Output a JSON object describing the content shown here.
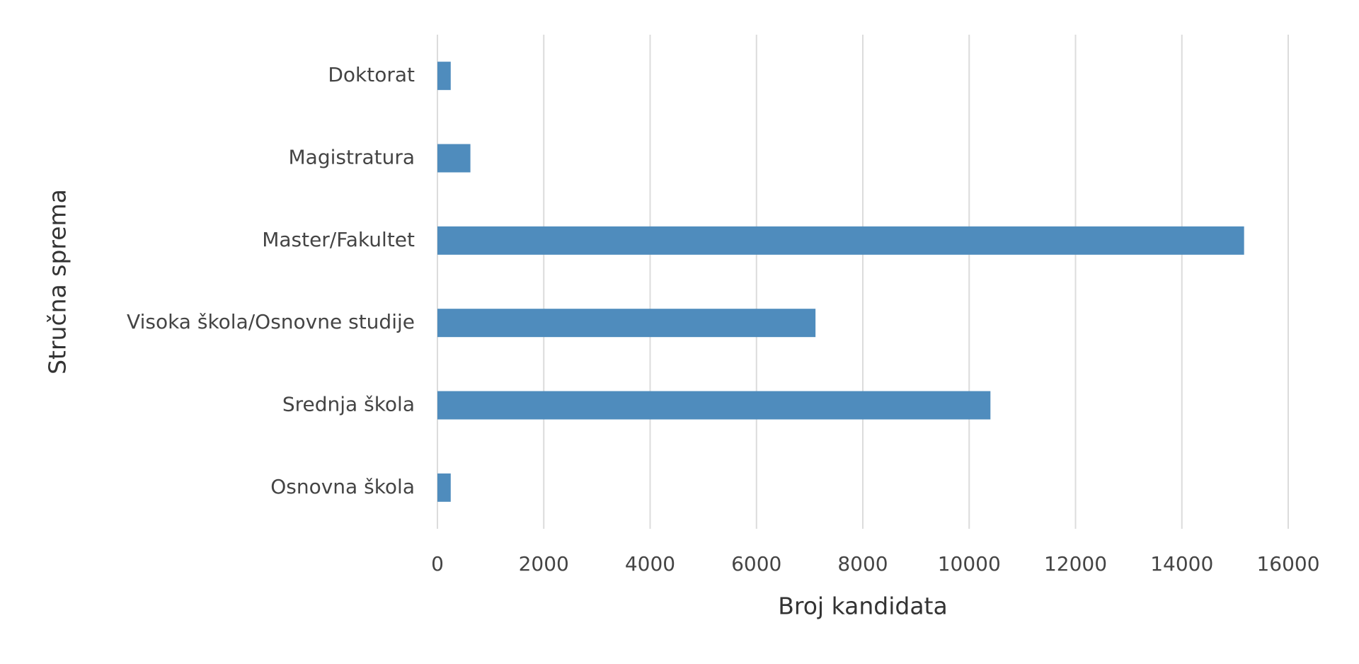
{
  "chart_data": {
    "type": "hbar",
    "xlabel": "Broj kandidata",
    "ylabel": "Stručna sprema",
    "categories": [
      "Doktorat",
      "Magistratura",
      "Master/Fakultet",
      "Visoka škola/Osnovne studije",
      "Srednja škola",
      "Osnovna škola"
    ],
    "values": [
      250,
      620,
      15170,
      7110,
      10400,
      250
    ],
    "color": "#4f8cbd",
    "xlim": [
      0,
      16000
    ],
    "xticks": [
      0,
      2000,
      4000,
      6000,
      8000,
      10000,
      12000,
      14000,
      16000
    ],
    "grid": true
  }
}
